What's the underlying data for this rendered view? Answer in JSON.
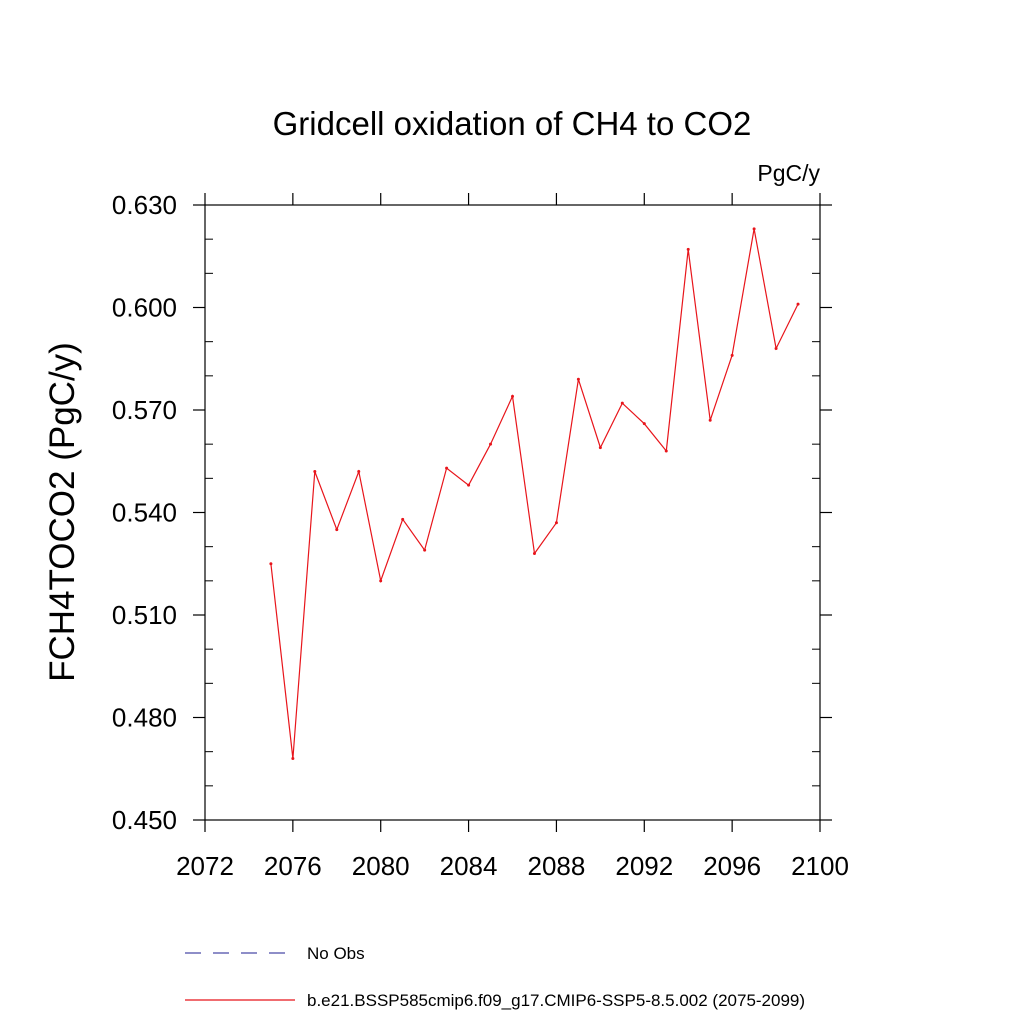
{
  "chart_data": {
    "type": "line",
    "title": "Gridcell oxidation of CH4 to CO2",
    "units": "PgC/y",
    "xlabel": "",
    "ylabel": "FCH4TOCO2  (PgC/y)",
    "xlim": [
      2072,
      2100
    ],
    "ylim": [
      0.45,
      0.63
    ],
    "xticks": [
      2072,
      2076,
      2080,
      2084,
      2088,
      2092,
      2096,
      2100
    ],
    "yticks": [
      0.45,
      0.48,
      0.51,
      0.54,
      0.57,
      0.6,
      0.63
    ],
    "ytick_labels": [
      "0.450",
      "0.480",
      "0.510",
      "0.540",
      "0.570",
      "0.600",
      "0.630"
    ],
    "grid": false,
    "series": [
      {
        "name": "No Obs",
        "color": "#4a4aa8",
        "style": "dashed",
        "x": [],
        "values": []
      },
      {
        "name": "b.e21.BSSP585cmip6.f09_g17.CMIP6-SSP5-8.5.002 (2075-2099)",
        "color": "#e8151b",
        "style": "solid",
        "x": [
          2075,
          2076,
          2077,
          2078,
          2079,
          2080,
          2081,
          2082,
          2083,
          2084,
          2085,
          2086,
          2087,
          2088,
          2089,
          2090,
          2091,
          2092,
          2093,
          2094,
          2095,
          2096,
          2097,
          2098,
          2099
        ],
        "values": [
          0.525,
          0.468,
          0.552,
          0.535,
          0.552,
          0.52,
          0.538,
          0.529,
          0.553,
          0.548,
          0.56,
          0.574,
          0.528,
          0.537,
          0.579,
          0.559,
          0.572,
          0.566,
          0.558,
          0.617,
          0.567,
          0.586,
          0.623,
          0.588,
          0.601
        ]
      }
    ],
    "legend": {
      "placement": "bottom",
      "entries": [
        {
          "label": "No Obs",
          "color": "#4a4aa8",
          "style": "dashed"
        },
        {
          "label": "b.e21.BSSP585cmip6.f09_g17.CMIP6-SSP5-8.5.002 (2075-2099)",
          "color": "#e8151b",
          "style": "solid"
        }
      ]
    }
  }
}
